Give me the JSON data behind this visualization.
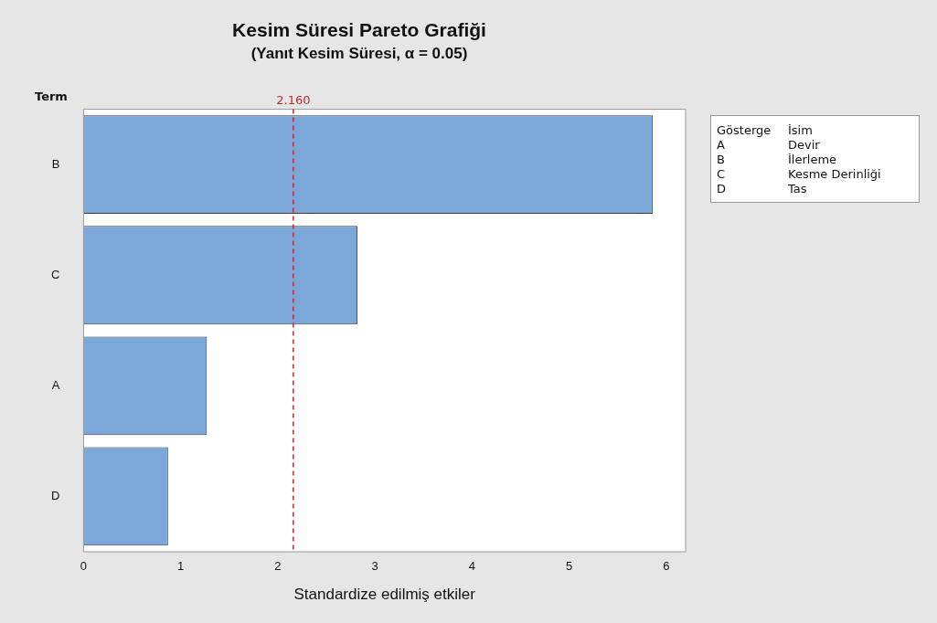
{
  "chart_data": {
    "type": "bar",
    "orientation": "horizontal",
    "title": "Kesim Süresi Pareto Grafiği",
    "subtitle": "(Yanıt Kesim Süresi, α = 0.05)",
    "xlabel": "Standardize edilmiş etkiler",
    "ylabel": "Term",
    "categories": [
      "B",
      "C",
      "A",
      "D"
    ],
    "values": [
      5.86,
      2.82,
      1.27,
      0.87
    ],
    "color": "#7ba7d9",
    "xlim": [
      0,
      6.2
    ],
    "xticks": [
      0,
      1,
      2,
      3,
      4,
      5,
      6
    ],
    "grid": false,
    "legend": false,
    "ref_lines": [
      {
        "axis": "x",
        "value": 2.16,
        "label": "2.160",
        "color": "#c0282d",
        "line_style": "dashed"
      }
    ],
    "annotations": [
      "Gösterge",
      "İsim",
      "A",
      "Devir",
      "B",
      "İlerleme",
      "C",
      "Kesme Derinliği",
      "D",
      "Tas"
    ]
  }
}
